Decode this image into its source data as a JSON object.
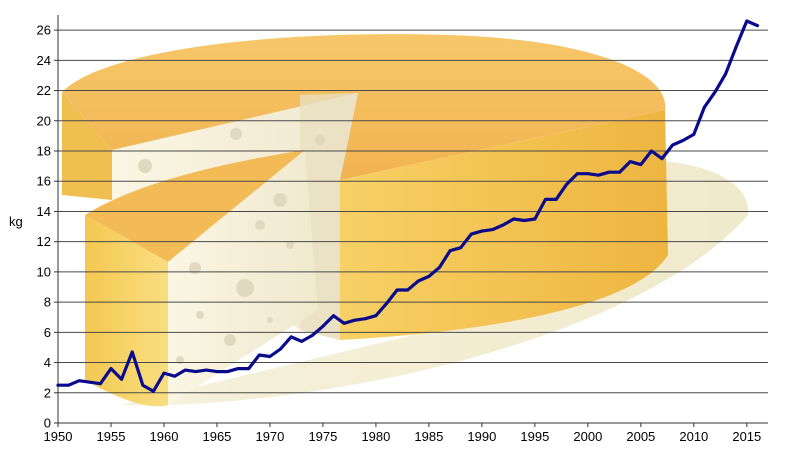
{
  "chart_data": {
    "type": "line",
    "title": "",
    "xlabel": "",
    "ylabel": "kg",
    "xlim": [
      1950,
      2017
    ],
    "ylim": [
      0,
      27
    ],
    "xticks": [
      1950,
      1955,
      1960,
      1965,
      1970,
      1975,
      1980,
      1985,
      1990,
      1995,
      2000,
      2005,
      2010,
      2015
    ],
    "yticks": [
      0,
      2,
      4,
      6,
      8,
      10,
      12,
      14,
      16,
      18,
      20,
      22,
      24,
      26
    ],
    "grid": "horizontal",
    "background_picture": "cheese wheel with cut wedge",
    "colors": {
      "line": "#0a0a8c",
      "grid": "#4a4a4a",
      "cheese_rind": "#f0b83a",
      "cheese_light": "#f7d27a",
      "cheese_inside": "#fbf6e0"
    },
    "series": [
      {
        "x": [
          1950,
          1951,
          1952,
          1953,
          1954,
          1955,
          1956,
          1957,
          1958,
          1959,
          1960,
          1961,
          1962,
          1963,
          1964,
          1965,
          1966,
          1967,
          1968,
          1969,
          1970,
          1971,
          1972,
          1973,
          1974,
          1975,
          1976,
          1977,
          1978,
          1979,
          1980,
          1981,
          1982,
          1983,
          1984,
          1985,
          1986,
          1987,
          1988,
          1989,
          1990,
          1991,
          1992,
          1993,
          1994,
          1995,
          1996,
          1997,
          1998,
          1999,
          2000,
          2001,
          2002,
          2003,
          2004,
          2005,
          2006,
          2007,
          2008,
          2009,
          2010,
          2011,
          2012,
          2013,
          2014,
          2015,
          2016
        ],
        "values": [
          2.5,
          2.5,
          2.8,
          2.7,
          2.6,
          3.6,
          2.9,
          4.7,
          2.5,
          2.1,
          3.3,
          3.1,
          3.5,
          3.4,
          3.5,
          3.4,
          3.4,
          3.6,
          3.6,
          4.5,
          4.4,
          4.9,
          5.7,
          5.4,
          5.8,
          6.4,
          7.1,
          6.6,
          6.8,
          6.9,
          7.1,
          7.9,
          8.8,
          8.8,
          9.4,
          9.7,
          10.3,
          11.4,
          11.6,
          12.5,
          12.7,
          12.8,
          13.1,
          13.5,
          13.4,
          13.5,
          14.8,
          14.8,
          15.8,
          16.5,
          16.5,
          16.4,
          16.6,
          16.6,
          17.3,
          17.1,
          18.0,
          17.5,
          18.4,
          18.7,
          19.1,
          20.9,
          21.9,
          23.1,
          24.9,
          26.6,
          26.3
        ]
      }
    ]
  }
}
